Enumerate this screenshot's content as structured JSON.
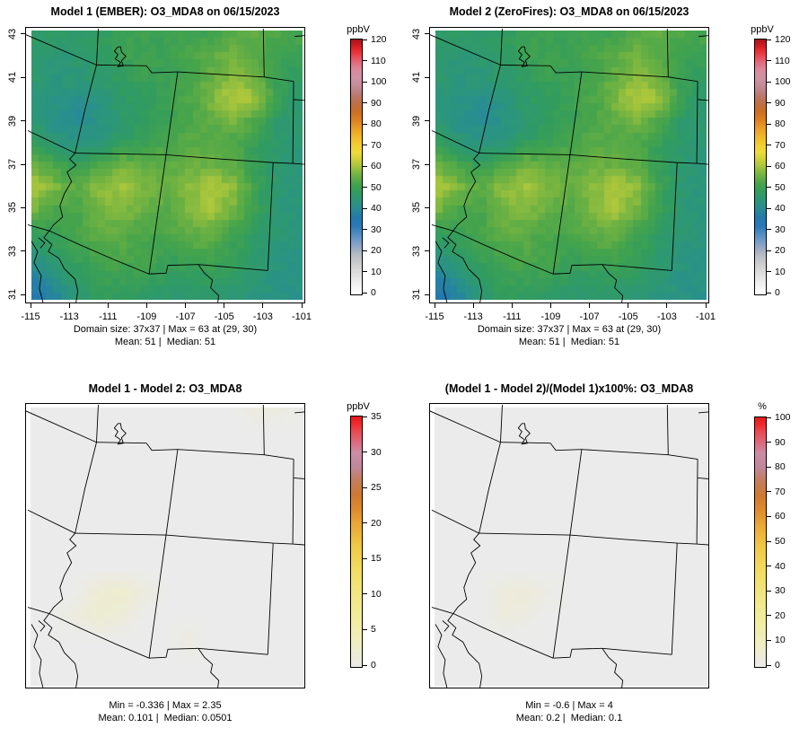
{
  "figure": {
    "background": "#ffffff",
    "variable": "O3_MDA8",
    "date": "06/15/2023"
  },
  "panels": [
    {
      "id": "model1",
      "title": "Model 1 (EMBER): O3_MDA8 on 06/15/2023",
      "colorbar": {
        "label": "ppbV",
        "min": 0,
        "max": 120,
        "ticks": [
          0,
          10,
          20,
          30,
          40,
          50,
          60,
          70,
          80,
          90,
          100,
          110,
          120
        ]
      },
      "captions": {
        "line1": "Domain size: 37x37 | Max = 63 at (29, 30)",
        "line2": "Mean: 51 |  Median: 51"
      },
      "axes": {
        "x_ticks": [
          -115,
          -113,
          -111,
          -109,
          -107,
          -105,
          -103,
          -101
        ],
        "y_ticks": [
          31,
          33,
          35,
          37,
          39,
          41,
          43
        ]
      },
      "field": "o3",
      "colormap": "concentration"
    },
    {
      "id": "model2",
      "title": "Model 2 (ZeroFires): O3_MDA8 on 06/15/2023",
      "colorbar": {
        "label": "ppbV",
        "min": 0,
        "max": 120,
        "ticks": [
          0,
          10,
          20,
          30,
          40,
          50,
          60,
          70,
          80,
          90,
          100,
          110,
          120
        ]
      },
      "captions": {
        "line1": "Domain size: 37x37 | Max = 63 at (29, 30)",
        "line2": "Mean: 51 |  Median: 51"
      },
      "axes": {
        "x_ticks": [
          -115,
          -113,
          -111,
          -109,
          -107,
          -105,
          -103,
          -101
        ],
        "y_ticks": [
          31,
          33,
          35,
          37,
          39,
          41,
          43
        ]
      },
      "field": "o3",
      "colormap": "concentration"
    },
    {
      "id": "difference",
      "title": "Model 1 - Model 2: O3_MDA8",
      "colorbar": {
        "label": "ppbV",
        "min": 0,
        "max": 35,
        "ticks": [
          0,
          5,
          10,
          15,
          20,
          25,
          30,
          35
        ]
      },
      "captions": {
        "line1": "Min = -0.336 | Max = 2.35",
        "line2": "Mean: 0.101 |  Median: 0.0501"
      },
      "axes": null,
      "field": "diff",
      "colormap": "difference"
    },
    {
      "id": "percent-difference",
      "title": "(Model 1 - Model 2)/(Model 1)x100%: O3_MDA8",
      "colorbar": {
        "label": "%",
        "min": 0,
        "max": 100,
        "ticks": [
          0,
          10,
          20,
          30,
          40,
          50,
          60,
          70,
          80,
          90,
          100
        ]
      },
      "captions": {
        "line1": "Min = -0.6 | Max = 4",
        "line2": "Mean: 0.2 |  Median: 0.1"
      },
      "axes": null,
      "field": "pct",
      "colormap": "difference"
    }
  ],
  "chart_data": {
    "type": "heatmap",
    "subtype": "gridded-map-comparison",
    "domain": {
      "lon_range": [
        -115,
        -101
      ],
      "lat_range": [
        31,
        43
      ],
      "grid_size": "37x37"
    },
    "region": "Southwestern United States (NV, UT, CO, AZ, NM four-corners region)",
    "stats": {
      "model1": {
        "max": 63,
        "max_cell": [
          29,
          30
        ],
        "mean": 51,
        "median": 51
      },
      "model2": {
        "max": 63,
        "max_cell": [
          29,
          30
        ],
        "mean": 51,
        "median": 51
      },
      "difference": {
        "min": -0.336,
        "max": 2.35,
        "mean": 0.101,
        "median": 0.0501
      },
      "percent_difference": {
        "min": -0.6,
        "max": 4,
        "mean": 0.2,
        "median": 0.1
      }
    },
    "colormaps": {
      "concentration": {
        "range": [
          0,
          120
        ],
        "stops": [
          [
            0.0,
            "#ffffff"
          ],
          [
            0.05,
            "#ececec"
          ],
          [
            0.1,
            "#d6d6d6"
          ],
          [
            0.15,
            "#b9bec6"
          ],
          [
            0.183,
            "#96a9c4"
          ],
          [
            0.225,
            "#5e93c6"
          ],
          [
            0.267,
            "#2a7ab8"
          ],
          [
            0.3,
            "#2379ad"
          ],
          [
            0.333,
            "#288b96"
          ],
          [
            0.367,
            "#2c967c"
          ],
          [
            0.4,
            "#319c60"
          ],
          [
            0.433,
            "#46a44b"
          ],
          [
            0.467,
            "#6fb242"
          ],
          [
            0.5,
            "#a3c43c"
          ],
          [
            0.533,
            "#d3d338"
          ],
          [
            0.558,
            "#eedd3c"
          ],
          [
            0.583,
            "#f3d031"
          ],
          [
            0.617,
            "#f2b92c"
          ],
          [
            0.65,
            "#eb9f27"
          ],
          [
            0.683,
            "#dd8122"
          ],
          [
            0.717,
            "#cb6f25"
          ],
          [
            0.75,
            "#bd6f45"
          ],
          [
            0.783,
            "#bb7a70"
          ],
          [
            0.817,
            "#c38b96"
          ],
          [
            0.85,
            "#cf93a6"
          ],
          [
            0.883,
            "#db8a9b"
          ],
          [
            0.917,
            "#e56377"
          ],
          [
            0.942,
            "#ec3f49"
          ],
          [
            0.967,
            "#e02227"
          ],
          [
            1.0,
            "#a81419"
          ]
        ]
      },
      "difference": {
        "range": [
          0,
          1
        ],
        "stops": [
          [
            0.0,
            "#ebebeb"
          ],
          [
            0.029,
            "#ecebdc"
          ],
          [
            0.086,
            "#efeec4"
          ],
          [
            0.171,
            "#f1eda3"
          ],
          [
            0.286,
            "#f2e784"
          ],
          [
            0.4,
            "#f2da5c"
          ],
          [
            0.486,
            "#f0c746"
          ],
          [
            0.571,
            "#eba637"
          ],
          [
            0.629,
            "#de8c2d"
          ],
          [
            0.686,
            "#cf7a33"
          ],
          [
            0.743,
            "#c47d58"
          ],
          [
            0.8,
            "#c1869a"
          ],
          [
            0.857,
            "#cc8da5"
          ],
          [
            0.886,
            "#d8758b"
          ],
          [
            0.943,
            "#e84a52"
          ],
          [
            0.971,
            "#f12a2e"
          ],
          [
            1.0,
            "#e31a1f"
          ]
        ]
      }
    },
    "fields": {
      "o3": {
        "units": "ppbV",
        "control_grid": [
          [
            48,
            47,
            46,
            48,
            50,
            50,
            50,
            51,
            50,
            54,
            55,
            53,
            52
          ],
          [
            47,
            45,
            46,
            47,
            50,
            51,
            50,
            52,
            54,
            56,
            53,
            50,
            51
          ],
          [
            46,
            44,
            45,
            46,
            48,
            50,
            50,
            52,
            55,
            58,
            55,
            49,
            48
          ],
          [
            45,
            43,
            42,
            44,
            47,
            48,
            50,
            53,
            57,
            62,
            59,
            49,
            46
          ],
          [
            46,
            42,
            40,
            43,
            46,
            48,
            50,
            52,
            55,
            57,
            52,
            46,
            45
          ],
          [
            49,
            45,
            43,
            44,
            48,
            50,
            52,
            54,
            53,
            52,
            49,
            46,
            45
          ],
          [
            56,
            52,
            49,
            53,
            56,
            55,
            54,
            55,
            56,
            54,
            49,
            45,
            44
          ],
          [
            62,
            57,
            54,
            58,
            60,
            57,
            55,
            58,
            61,
            58,
            50,
            45,
            44
          ],
          [
            57,
            52,
            52,
            56,
            58,
            55,
            54,
            57,
            60,
            56,
            49,
            45,
            44
          ],
          [
            49,
            50,
            52,
            55,
            54,
            52,
            53,
            55,
            55,
            51,
            47,
            45,
            44
          ],
          [
            44,
            47,
            50,
            52,
            53,
            52,
            50,
            52,
            52,
            49,
            46,
            44,
            43
          ],
          [
            38,
            43,
            48,
            50,
            50,
            50,
            48,
            48,
            48,
            47,
            45,
            43,
            42
          ],
          [
            34,
            37,
            45,
            48,
            48,
            47,
            46,
            46,
            46,
            45,
            44,
            43,
            42
          ]
        ]
      },
      "diff": {
        "units": "ppbV",
        "control_grid": [
          [
            0,
            0,
            0,
            0,
            0,
            0,
            0,
            0,
            0,
            0,
            1.0,
            0.7,
            0
          ],
          [
            0,
            0,
            0,
            0,
            0,
            0,
            0,
            0,
            0,
            0,
            0,
            0,
            0
          ],
          [
            0,
            0,
            0,
            0,
            0,
            0,
            0,
            0,
            0,
            0,
            0,
            0,
            0
          ],
          [
            0,
            0,
            0,
            0,
            0,
            0,
            0,
            0,
            0,
            0,
            0,
            0,
            0
          ],
          [
            0,
            0,
            0,
            0,
            0,
            0,
            0,
            0,
            0,
            0,
            0,
            0,
            0
          ],
          [
            0,
            0,
            0,
            0,
            0,
            0,
            0,
            0,
            0,
            0,
            0,
            0,
            0
          ],
          [
            0,
            0,
            0,
            0,
            0,
            0,
            0,
            0,
            0,
            0,
            0,
            0,
            0
          ],
          [
            0,
            0,
            0,
            0,
            0,
            0,
            0,
            0,
            0,
            0,
            0,
            0,
            0
          ],
          [
            0,
            0,
            0,
            1.7,
            2.3,
            0.9,
            0,
            0,
            0,
            0,
            0,
            0,
            0
          ],
          [
            0,
            0,
            0.8,
            1.9,
            1.2,
            0,
            0,
            0,
            0,
            0,
            0,
            0,
            0
          ],
          [
            0,
            0,
            0,
            0,
            0,
            0,
            0,
            0.7,
            0,
            0,
            0,
            0,
            0
          ],
          [
            0,
            0,
            0,
            0,
            0,
            0,
            0,
            0,
            0,
            0,
            0,
            0,
            0
          ],
          [
            0,
            0,
            0,
            0,
            0,
            0,
            0,
            0,
            0,
            0,
            0,
            0,
            0
          ]
        ]
      },
      "pct": {
        "units": "%",
        "control_grid": [
          [
            0,
            0,
            0,
            0,
            0,
            0,
            0,
            0,
            0,
            0,
            0,
            0,
            0
          ],
          [
            0,
            0,
            0,
            0,
            0,
            0,
            0,
            0,
            0,
            0,
            0,
            0,
            0
          ],
          [
            0,
            0,
            0,
            0,
            0,
            0,
            0,
            0,
            0,
            0,
            0,
            0,
            0
          ],
          [
            0,
            0,
            0,
            0,
            0,
            0,
            0,
            0,
            0,
            0,
            0,
            0,
            0
          ],
          [
            0,
            0,
            0,
            0,
            0,
            0,
            0,
            0,
            0,
            0,
            0,
            0,
            0
          ],
          [
            0,
            0,
            0,
            0,
            0,
            0,
            0,
            0,
            0,
            0,
            0,
            0,
            0
          ],
          [
            0,
            0,
            0,
            0,
            0,
            0,
            0,
            0,
            0,
            0,
            0,
            0,
            0
          ],
          [
            0,
            0,
            0,
            0,
            0,
            0,
            0,
            0,
            0,
            0,
            0,
            0,
            0
          ],
          [
            0,
            0,
            0,
            2.6,
            3.8,
            1.2,
            0,
            0,
            0,
            0,
            0,
            0,
            0
          ],
          [
            0,
            0,
            0,
            2.6,
            1.6,
            0,
            0,
            0,
            0,
            0,
            0,
            0,
            0
          ],
          [
            0,
            0,
            0,
            0,
            0,
            0,
            0,
            0,
            0,
            0,
            0,
            0,
            0
          ],
          [
            0,
            0,
            0,
            0,
            0,
            0,
            0,
            0,
            0,
            0,
            0,
            0,
            0
          ],
          [
            0,
            0,
            0,
            0,
            0,
            0,
            0,
            0,
            0,
            0,
            0,
            0,
            0
          ]
        ]
      }
    }
  }
}
